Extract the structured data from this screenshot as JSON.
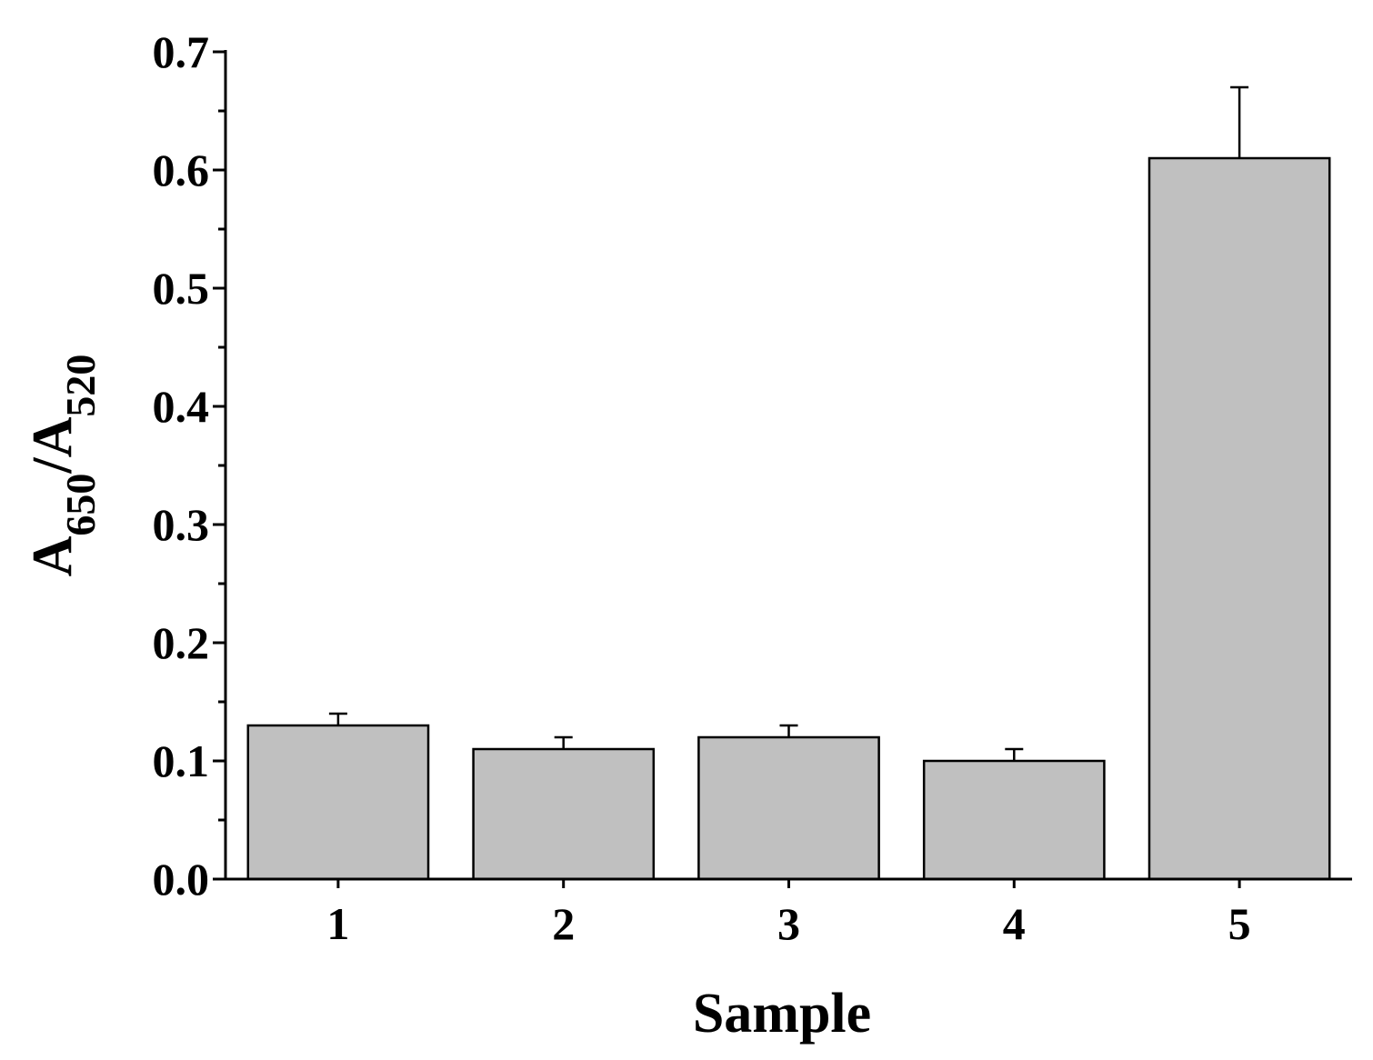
{
  "chart_data": {
    "type": "bar",
    "x_label": "Sample",
    "y_label": [
      "A",
      "650",
      "/A",
      "520"
    ],
    "categories": [
      "1",
      "2",
      "3",
      "4",
      "5"
    ],
    "values": [
      0.13,
      0.11,
      0.12,
      0.1,
      0.61
    ],
    "errors": [
      0.01,
      0.01,
      0.01,
      0.01,
      0.06
    ],
    "color": "#c0c0c0",
    "ylim": [
      0,
      0.7
    ],
    "yticks": [
      {
        "value": 0,
        "label": "0.0"
      },
      0.1,
      0.2,
      0.3,
      0.4,
      0.5,
      0.6,
      0.7
    ],
    "grid": false
  }
}
